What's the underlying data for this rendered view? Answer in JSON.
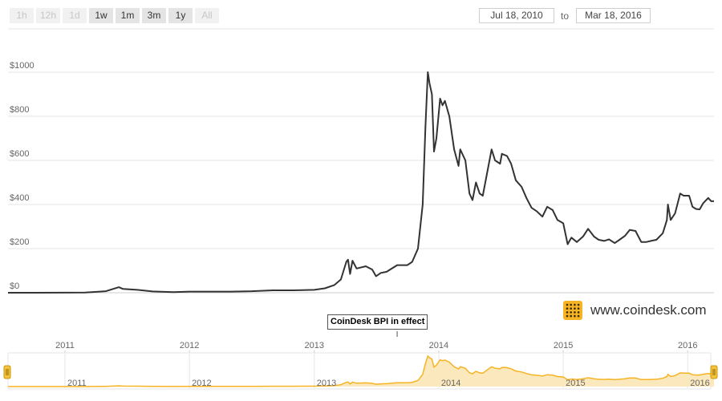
{
  "toolbar": {
    "zoom_buttons": [
      {
        "label": "1h",
        "enabled": false
      },
      {
        "label": "12h",
        "enabled": false
      },
      {
        "label": "1d",
        "enabled": false
      },
      {
        "label": "1w",
        "enabled": true
      },
      {
        "label": "1m",
        "enabled": true
      },
      {
        "label": "3m",
        "enabled": true
      },
      {
        "label": "1y",
        "enabled": true
      },
      {
        "label": "All",
        "enabled": false
      }
    ],
    "from_date": "Jul 18, 2010",
    "to_label": "to",
    "to_date": "Mar 18, 2016"
  },
  "branding": {
    "site": "www.coindesk.com",
    "icon": "coindesk-logo-icon"
  },
  "annotation": {
    "text": "CoinDesk BPI in effect",
    "date": "2013-09-01"
  },
  "colors": {
    "line": "#333333",
    "navigator_line": "#f6b323",
    "navigator_fill": "#fbe9bd",
    "handle": "#f6c23a",
    "logo": "#f6b323"
  },
  "chart_data": {
    "type": "line",
    "title": "",
    "xlabel": "",
    "ylabel": "",
    "x_range": [
      "2010-07-18",
      "2016-03-18"
    ],
    "ylim": [
      0,
      1000
    ],
    "y_ticks": [
      0,
      200,
      400,
      600,
      800,
      1000
    ],
    "y_tick_labels": [
      "$0",
      "$200",
      "$400",
      "$600",
      "$800",
      "$1000"
    ],
    "x_ticks": [
      "2011-01-01",
      "2012-01-01",
      "2013-01-01",
      "2014-01-01",
      "2015-01-01",
      "2016-01-01"
    ],
    "x_tick_labels": [
      "2011",
      "2012",
      "2013",
      "2014",
      "2015",
      "2016"
    ],
    "grid": true,
    "series": [
      {
        "points": [
          [
            "2010-07-18",
            0.05
          ],
          [
            "2010-10-01",
            0.06
          ],
          [
            "2011-01-01",
            0.3
          ],
          [
            "2011-03-01",
            0.9
          ],
          [
            "2011-05-01",
            7
          ],
          [
            "2011-06-08",
            25
          ],
          [
            "2011-06-20",
            17
          ],
          [
            "2011-08-01",
            13
          ],
          [
            "2011-09-15",
            6
          ],
          [
            "2011-11-15",
            3
          ],
          [
            "2012-01-01",
            5
          ],
          [
            "2012-03-01",
            5
          ],
          [
            "2012-05-01",
            5
          ],
          [
            "2012-07-01",
            7
          ],
          [
            "2012-09-01",
            11
          ],
          [
            "2012-11-01",
            11
          ],
          [
            "2013-01-01",
            13
          ],
          [
            "2013-02-01",
            20
          ],
          [
            "2013-03-01",
            35
          ],
          [
            "2013-03-20",
            60
          ],
          [
            "2013-04-05",
            140
          ],
          [
            "2013-04-10",
            150
          ],
          [
            "2013-04-16",
            85
          ],
          [
            "2013-04-23",
            145
          ],
          [
            "2013-05-05",
            110
          ],
          [
            "2013-06-01",
            120
          ],
          [
            "2013-06-20",
            105
          ],
          [
            "2013-07-01",
            75
          ],
          [
            "2013-07-15",
            90
          ],
          [
            "2013-08-01",
            95
          ],
          [
            "2013-09-01",
            125
          ],
          [
            "2013-10-01",
            125
          ],
          [
            "2013-10-15",
            140
          ],
          [
            "2013-11-01",
            200
          ],
          [
            "2013-11-15",
            400
          ],
          [
            "2013-11-23",
            750
          ],
          [
            "2013-11-30",
            1000
          ],
          [
            "2013-12-05",
            950
          ],
          [
            "2013-12-12",
            900
          ],
          [
            "2013-12-18",
            640
          ],
          [
            "2013-12-25",
            700
          ],
          [
            "2014-01-05",
            880
          ],
          [
            "2014-01-12",
            850
          ],
          [
            "2014-01-19",
            870
          ],
          [
            "2014-02-01",
            800
          ],
          [
            "2014-02-15",
            650
          ],
          [
            "2014-02-28",
            575
          ],
          [
            "2014-03-05",
            650
          ],
          [
            "2014-03-20",
            600
          ],
          [
            "2014-04-01",
            450
          ],
          [
            "2014-04-10",
            420
          ],
          [
            "2014-04-20",
            500
          ],
          [
            "2014-05-01",
            450
          ],
          [
            "2014-05-10",
            440
          ],
          [
            "2014-05-20",
            520
          ],
          [
            "2014-06-05",
            650
          ],
          [
            "2014-06-15",
            600
          ],
          [
            "2014-06-30",
            585
          ],
          [
            "2014-07-05",
            630
          ],
          [
            "2014-07-20",
            620
          ],
          [
            "2014-08-01",
            585
          ],
          [
            "2014-08-15",
            510
          ],
          [
            "2014-09-01",
            480
          ],
          [
            "2014-09-15",
            430
          ],
          [
            "2014-09-30",
            385
          ],
          [
            "2014-10-15",
            370
          ],
          [
            "2014-11-01",
            345
          ],
          [
            "2014-11-15",
            390
          ],
          [
            "2014-12-01",
            375
          ],
          [
            "2014-12-15",
            330
          ],
          [
            "2015-01-01",
            315
          ],
          [
            "2015-01-14",
            220
          ],
          [
            "2015-01-25",
            250
          ],
          [
            "2015-02-10",
            230
          ],
          [
            "2015-02-28",
            255
          ],
          [
            "2015-03-15",
            290
          ],
          [
            "2015-04-01",
            255
          ],
          [
            "2015-04-15",
            240
          ],
          [
            "2015-05-01",
            235
          ],
          [
            "2015-05-15",
            242
          ],
          [
            "2015-06-01",
            225
          ],
          [
            "2015-06-15",
            240
          ],
          [
            "2015-07-01",
            258
          ],
          [
            "2015-07-15",
            285
          ],
          [
            "2015-08-01",
            280
          ],
          [
            "2015-08-18",
            230
          ],
          [
            "2015-09-01",
            230
          ],
          [
            "2015-09-15",
            235
          ],
          [
            "2015-10-01",
            240
          ],
          [
            "2015-10-20",
            270
          ],
          [
            "2015-11-01",
            330
          ],
          [
            "2015-11-04",
            400
          ],
          [
            "2015-11-12",
            330
          ],
          [
            "2015-11-25",
            360
          ],
          [
            "2015-12-10",
            450
          ],
          [
            "2015-12-20",
            440
          ],
          [
            "2016-01-05",
            440
          ],
          [
            "2016-01-15",
            390
          ],
          [
            "2016-01-25",
            380
          ],
          [
            "2016-02-05",
            378
          ],
          [
            "2016-02-15",
            405
          ],
          [
            "2016-03-01",
            430
          ],
          [
            "2016-03-10",
            415
          ],
          [
            "2016-03-18",
            415
          ]
        ]
      }
    ],
    "navigator": {
      "x_tick_labels": [
        "2011",
        "2012",
        "2013",
        "2014",
        "2015",
        "2016"
      ]
    }
  }
}
